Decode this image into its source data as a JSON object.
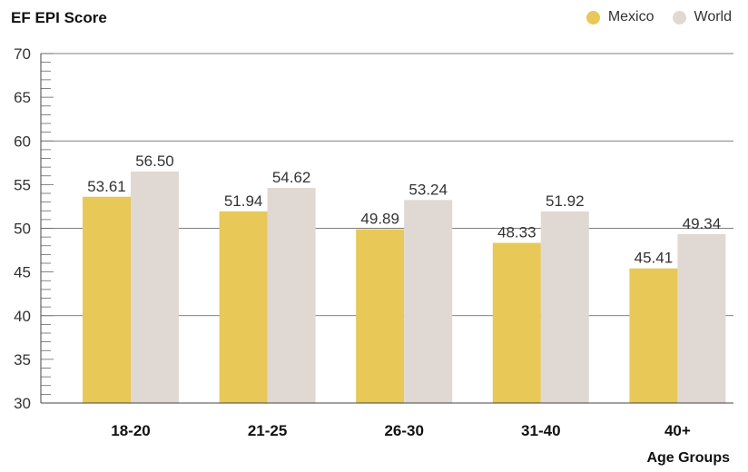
{
  "chart_data": {
    "type": "bar",
    "ylabel": "EF EPI Score",
    "xlabel": "Age Groups",
    "categories": [
      "18-20",
      "21-25",
      "26-30",
      "31-40",
      "40+"
    ],
    "series": [
      {
        "name": "Mexico",
        "color": "#e8c857",
        "values": [
          53.61,
          51.94,
          49.89,
          48.33,
          45.41
        ],
        "labels": [
          "53.61",
          "51.94",
          "49.89",
          "48.33",
          "45.41"
        ]
      },
      {
        "name": "World",
        "color": "#e0d8d3",
        "values": [
          56.5,
          54.62,
          53.24,
          51.92,
          49.34
        ],
        "labels": [
          "56.50",
          "54.62",
          "53.24",
          "51.92",
          "49.34"
        ]
      }
    ],
    "ylim": [
      30,
      70
    ],
    "yticks": [
      "30",
      "35",
      "40",
      "45",
      "50",
      "55",
      "60",
      "65",
      "70"
    ],
    "grid": true,
    "legend_position": "top-right"
  }
}
